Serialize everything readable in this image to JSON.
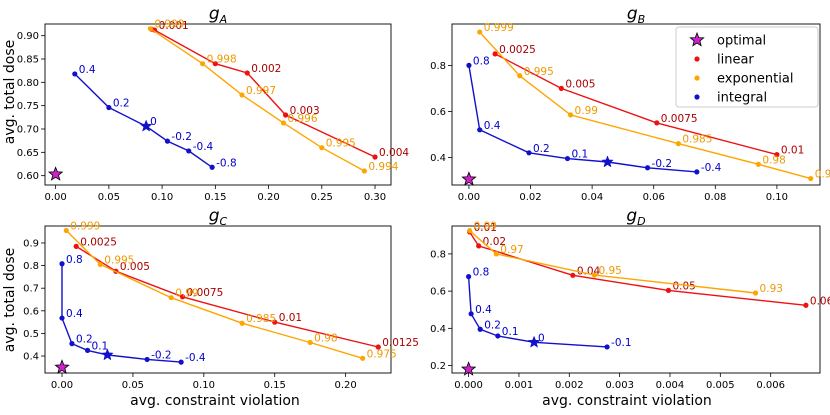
{
  "figure": {
    "ylabel": "avg. total dose",
    "xlabel": "avg. constraint violation"
  },
  "legend": {
    "location": "top-right",
    "entries": [
      {
        "label": "optimal",
        "color": "#cc22cc",
        "marker": "star"
      },
      {
        "label": "linear",
        "color": "#ee1111",
        "marker": "dot"
      },
      {
        "label": "exponential",
        "color": "#ffa500",
        "marker": "dot"
      },
      {
        "label": "integral",
        "color": "#1111cc",
        "marker": "dot"
      }
    ]
  },
  "colors": {
    "linear": "#ee1111",
    "exponential": "#ffa500",
    "integral": "#1111cc",
    "optimal": "#cc22cc",
    "linear_text": "#aa0000",
    "exponential_text": "#ee9900",
    "integral_text": "#0000cc"
  },
  "chart_data": [
    {
      "type": "line",
      "title": "g_A",
      "title_main": "g",
      "title_sub": "A",
      "xlim": [
        -0.01,
        0.315
      ],
      "ylim": [
        0.58,
        0.925
      ],
      "xticks": [
        0.0,
        0.05,
        0.1,
        0.15,
        0.2,
        0.25,
        0.3
      ],
      "xtick_labels": [
        "0.00",
        "0.05",
        "0.10",
        "0.15",
        "0.20",
        "0.25",
        "0.30"
      ],
      "yticks": [
        0.6,
        0.65,
        0.7,
        0.75,
        0.8,
        0.85,
        0.9
      ],
      "ytick_labels": [
        "0.60",
        "0.65",
        "0.70",
        "0.75",
        "0.80",
        "0.85",
        "0.90"
      ],
      "optimal": {
        "x": 0.0,
        "y": 0.603
      },
      "series": [
        {
          "name": "linear",
          "points": [
            [
              0.09,
              0.914,
              ""
            ],
            [
              0.093,
              0.912,
              "0.001"
            ],
            [
              0.15,
              0.84,
              ""
            ],
            [
              0.18,
              0.82,
              "0.002"
            ],
            [
              0.216,
              0.73,
              "0.003"
            ],
            [
              0.3,
              0.64,
              "0.004"
            ]
          ]
        },
        {
          "name": "exponential",
          "points": [
            [
              0.089,
              0.915,
              "0.999"
            ],
            [
              0.138,
              0.84,
              "0.998"
            ],
            [
              0.175,
              0.773,
              "0.997"
            ],
            [
              0.214,
              0.713,
              "0.996"
            ],
            [
              0.25,
              0.66,
              "0.995"
            ],
            [
              0.29,
              0.61,
              "0.994"
            ]
          ]
        },
        {
          "name": "integral",
          "points": [
            [
              0.018,
              0.818,
              "0.4"
            ],
            [
              0.05,
              0.746,
              "0.2"
            ],
            [
              0.085,
              0.706,
              "0"
            ],
            [
              0.105,
              0.674,
              "-0.2"
            ],
            [
              0.125,
              0.653,
              "-0.4"
            ],
            [
              0.147,
              0.618,
              "-0.8"
            ]
          ]
        }
      ],
      "integral_star_index": 2
    },
    {
      "type": "line",
      "title": "g_B",
      "title_main": "g",
      "title_sub": "B",
      "xlim": [
        -0.0055,
        0.114
      ],
      "ylim": [
        0.28,
        0.98
      ],
      "xticks": [
        0.0,
        0.02,
        0.04,
        0.06,
        0.08,
        0.1
      ],
      "xtick_labels": [
        "0.00",
        "0.02",
        "0.04",
        "0.06",
        "0.08",
        "0.10"
      ],
      "yticks": [
        0.4,
        0.6,
        0.8
      ],
      "ytick_labels": [
        "0.4",
        "0.6",
        "0.8"
      ],
      "optimal": {
        "x": 0.0,
        "y": 0.305
      },
      "series": [
        {
          "name": "linear",
          "points": [
            [
              0.0085,
              0.85,
              "0.0025"
            ],
            [
              0.03,
              0.7,
              "0.005"
            ],
            [
              0.061,
              0.55,
              "0.0075"
            ],
            [
              0.1,
              0.412,
              "0.01"
            ]
          ]
        },
        {
          "name": "exponential",
          "points": [
            [
              0.0035,
              0.945,
              "0.999"
            ],
            [
              0.0165,
              0.755,
              "0.995"
            ],
            [
              0.033,
              0.585,
              "0.99"
            ],
            [
              0.068,
              0.46,
              "0.985"
            ],
            [
              0.094,
              0.37,
              "0.98"
            ],
            [
              0.111,
              0.308,
              "0.975"
            ]
          ]
        },
        {
          "name": "integral",
          "points": [
            [
              0.0,
              0.8,
              "0.8"
            ],
            [
              0.0035,
              0.52,
              "0.4"
            ],
            [
              0.0195,
              0.42,
              "0.2"
            ],
            [
              0.032,
              0.395,
              "0.1"
            ],
            [
              0.045,
              0.38,
              ""
            ],
            [
              0.058,
              0.355,
              "-0.2"
            ],
            [
              0.074,
              0.337,
              "-0.4"
            ]
          ]
        }
      ],
      "integral_star_index": 4
    },
    {
      "type": "line",
      "title": "g_C",
      "title_main": "g",
      "title_sub": "C",
      "xlim": [
        -0.012,
        0.232
      ],
      "ylim": [
        0.325,
        0.975
      ],
      "xticks": [
        0.0,
        0.05,
        0.1,
        0.15,
        0.2
      ],
      "xtick_labels": [
        "0.00",
        "0.05",
        "0.10",
        "0.15",
        "0.20"
      ],
      "yticks": [
        0.4,
        0.5,
        0.6,
        0.7,
        0.8,
        0.9
      ],
      "ytick_labels": [
        "0.4",
        "0.5",
        "0.6",
        "0.7",
        "0.8",
        "0.9"
      ],
      "optimal": {
        "x": 0.0,
        "y": 0.35
      },
      "series": [
        {
          "name": "linear",
          "points": [
            [
              0.01,
              0.885,
              "0.0025"
            ],
            [
              0.038,
              0.775,
              "0.005"
            ],
            [
              0.085,
              0.662,
              "0.0075"
            ],
            [
              0.15,
              0.55,
              "0.01"
            ],
            [
              0.223,
              0.44,
              "0.0125"
            ]
          ]
        },
        {
          "name": "exponential",
          "points": [
            [
              0.003,
              0.955,
              "0.999"
            ],
            [
              0.027,
              0.805,
              "0.995"
            ],
            [
              0.077,
              0.658,
              "0.99"
            ],
            [
              0.127,
              0.545,
              "0.985"
            ],
            [
              0.175,
              0.46,
              "0.98"
            ],
            [
              0.212,
              0.39,
              "0.975"
            ]
          ]
        },
        {
          "name": "integral",
          "points": [
            [
              0.0,
              0.808,
              "0.8"
            ],
            [
              0.0,
              0.568,
              "0.4"
            ],
            [
              0.007,
              0.455,
              "0.2"
            ],
            [
              0.018,
              0.425,
              "0.1"
            ],
            [
              0.032,
              0.405,
              ""
            ],
            [
              0.06,
              0.385,
              "-0.2"
            ],
            [
              0.084,
              0.373,
              "-0.4"
            ]
          ]
        }
      ],
      "integral_star_index": 4
    },
    {
      "type": "line",
      "title": "g_D",
      "title_main": "g",
      "title_sub": "D",
      "xlim": [
        -0.00033,
        0.00698
      ],
      "ylim": [
        0.16,
        0.95
      ],
      "xticks": [
        0.0,
        0.001,
        0.002,
        0.003,
        0.004,
        0.005,
        0.006
      ],
      "xtick_labels": [
        "0.000",
        "0.001",
        "0.002",
        "0.003",
        "0.004",
        "0.005",
        "0.006"
      ],
      "yticks": [
        0.2,
        0.4,
        0.6,
        0.8
      ],
      "ytick_labels": [
        "0.2",
        "0.4",
        "0.6",
        "0.8"
      ],
      "optimal": {
        "x": 0.0,
        "y": 0.18
      },
      "series": [
        {
          "name": "linear",
          "points": [
            [
              2e-05,
              0.918,
              "0.01"
            ],
            [
              0.0002,
              0.843,
              "0.02"
            ],
            [
              0.00207,
              0.685,
              "0.04"
            ],
            [
              0.00397,
              0.604,
              "0.05"
            ],
            [
              0.0067,
              0.524,
              "0.06"
            ]
          ]
        },
        {
          "name": "exponential",
          "points": [
            [
              2e-05,
              0.925,
              "0.99"
            ],
            [
              0.00055,
              0.8,
              "0.97"
            ],
            [
              0.0025,
              0.686,
              "0.95"
            ],
            [
              0.0057,
              0.59,
              "0.93"
            ]
          ]
        },
        {
          "name": "integral",
          "points": [
            [
              0.0,
              0.678,
              "0.8"
            ],
            [
              5e-05,
              0.478,
              "0.4"
            ],
            [
              0.00023,
              0.395,
              "0.2"
            ],
            [
              0.00058,
              0.359,
              "0.1"
            ],
            [
              0.0013,
              0.325,
              "0"
            ],
            [
              0.00275,
              0.3,
              "-0.1"
            ]
          ]
        }
      ],
      "integral_star_index": 4
    }
  ]
}
